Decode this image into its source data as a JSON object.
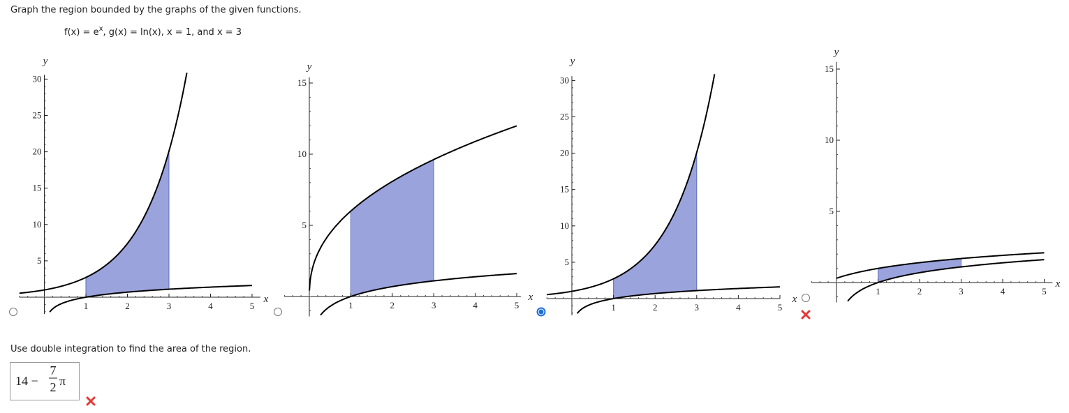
{
  "instruction": "Graph the region bounded by the graphs of the given functions.",
  "functions": {
    "lead": "f(x) = e",
    "exponent": "x",
    "rest": ", g(x) = ln(x), x = 1, and x = 3"
  },
  "options": [
    {
      "x_label": "x",
      "y_label": "y",
      "xticks": [
        1,
        2,
        3,
        4,
        5
      ],
      "yticks": [
        5,
        10,
        15,
        20,
        25,
        30
      ],
      "selected": false,
      "marked_wrong": false
    },
    {
      "x_label": "x",
      "y_label": "y",
      "xticks": [
        1,
        2,
        3,
        4,
        5
      ],
      "yticks": [
        5,
        10,
        15
      ],
      "selected": false,
      "marked_wrong": false
    },
    {
      "x_label": "x",
      "y_label": "y",
      "xticks": [
        1,
        2,
        3,
        4,
        5
      ],
      "yticks": [
        5,
        10,
        15,
        20,
        25,
        30
      ],
      "selected": true,
      "marked_wrong": true
    },
    {
      "x_label": "x",
      "y_label": "y",
      "xticks": [
        1,
        2,
        3,
        4,
        5
      ],
      "yticks": [
        5,
        10,
        15
      ],
      "selected": false,
      "marked_wrong": false
    }
  ],
  "question": "Use double integration to find the area of the region.",
  "answer": {
    "lead": "14 −",
    "numerator": "7",
    "denominator": "2",
    "symbol": "π",
    "marked_wrong": true
  }
}
